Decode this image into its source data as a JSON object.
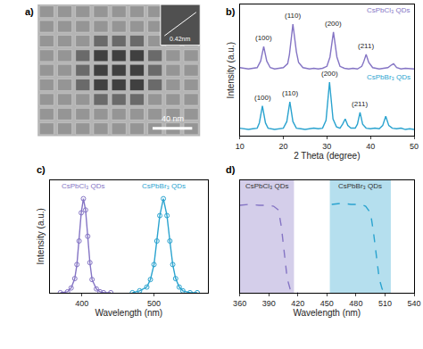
{
  "chart_data": [
    {
      "panel": "a)",
      "type": "image",
      "scale_bar": "40 nm",
      "inset_label": "0.42nm"
    },
    {
      "panel": "b)",
      "type": "line",
      "x_label": "2 Theta (degree)",
      "y_label": "Intensity (a.u.)",
      "xlim": [
        10,
        50
      ],
      "xticks": [
        10,
        20,
        30,
        40,
        50
      ],
      "ylim": [
        0,
        100
      ],
      "tick_labels": "x",
      "series": [
        {
          "name": "CsPbCl₃ QDs",
          "color": "#8474c4",
          "x": [
            10,
            11,
            12,
            13,
            14,
            14.8,
            15.5,
            16.2,
            17,
            18,
            19,
            20,
            21,
            21.4,
            22.2,
            23,
            23.5,
            24.5,
            26,
            27,
            28,
            29,
            30,
            30.7,
            31.5,
            32.3,
            33,
            34,
            35,
            36,
            37,
            38,
            38.4,
            39,
            39.6,
            40.5,
            42,
            43,
            44,
            44.8,
            45.3,
            46,
            47,
            48,
            49,
            50
          ],
          "values": [
            52,
            51.5,
            51,
            51.5,
            52,
            57,
            68,
            57,
            52,
            51,
            51.5,
            52,
            55,
            62,
            85,
            64,
            56,
            52,
            51,
            51.5,
            51,
            51.5,
            53,
            60,
            79,
            60,
            53,
            51.5,
            51,
            51.5,
            51,
            53,
            56,
            62,
            56,
            52,
            51,
            51.5,
            52,
            54,
            55,
            52,
            51,
            51.5,
            51,
            51
          ],
          "annotations": [
            {
              "text": "(100)",
              "x": 15.5,
              "y": 70
            },
            {
              "text": "(110)",
              "x": 22.2,
              "y": 87
            },
            {
              "text": "(200)",
              "x": 31.5,
              "y": 81
            },
            {
              "text": "(211)",
              "x": 39,
              "y": 64
            }
          ]
        },
        {
          "name": "CsPbBr₃ QDs",
          "color": "#2aa3cf",
          "x": [
            10,
            11,
            12,
            13,
            14,
            14.5,
            15.2,
            15.9,
            16.5,
            18,
            19,
            20,
            20.8,
            21.5,
            22.2,
            23,
            24,
            25,
            26,
            27,
            28,
            29,
            29.8,
            30.6,
            31.4,
            32.2,
            33,
            33.6,
            34.2,
            34.8,
            35.5,
            36.5,
            37,
            37.6,
            38.2,
            39,
            40,
            41,
            42,
            42.8,
            43.5,
            44.2,
            45,
            46,
            47,
            48,
            49,
            50
          ],
          "values": [
            6,
            5.5,
            5,
            5.5,
            6,
            10,
            23,
            10,
            6,
            5,
            5.5,
            6,
            11,
            26,
            11,
            6,
            5.5,
            5,
            5.5,
            6,
            5.5,
            6,
            12,
            41,
            13,
            7,
            6,
            9,
            13,
            8,
            6,
            6,
            9,
            18,
            9,
            6,
            5.5,
            6,
            5.5,
            8,
            15,
            8,
            6,
            5.5,
            6,
            5,
            5.5,
            5
          ],
          "annotations": [
            {
              "text": "(100)",
              "x": 15.2,
              "y": 25
            },
            {
              "text": "(110)",
              "x": 21.5,
              "y": 28
            },
            {
              "text": "(200)",
              "x": 30.6,
              "y": 43
            },
            {
              "text": "(211)",
              "x": 37.6,
              "y": 20
            }
          ]
        }
      ]
    },
    {
      "panel": "c)",
      "type": "line",
      "x_label": "Wavelength (nm)",
      "y_label": "Intensity (a.u.)",
      "xlim": [
        355,
        575
      ],
      "xticks": [
        400,
        500
      ],
      "ylim": [
        0,
        120
      ],
      "tick_labels": "x",
      "marker": "circle-open",
      "series": [
        {
          "name": "CsPbCl₃ QDs",
          "color": "#8474c4",
          "x": [
            370,
            380,
            385,
            390,
            393,
            396,
            399,
            402,
            405,
            408,
            411,
            414,
            420,
            425,
            430,
            440
          ],
          "values": [
            0,
            1,
            5,
            15,
            30,
            55,
            85,
            100,
            88,
            60,
            32,
            14,
            4,
            1,
            0,
            0
          ]
        },
        {
          "name": "CsPbBr₃ QDs",
          "color": "#2aa3cf",
          "x": [
            470,
            480,
            490,
            495,
            500,
            504,
            508,
            513,
            518,
            522,
            526,
            530,
            535,
            540,
            550,
            560
          ],
          "values": [
            0,
            2,
            6,
            14,
            30,
            55,
            82,
            100,
            82,
            55,
            30,
            15,
            6,
            2,
            0,
            0
          ]
        }
      ]
    },
    {
      "panel": "d)",
      "type": "line",
      "x_label": "Wavelength (nm)",
      "xlim": [
        360,
        540
      ],
      "xticks": [
        360,
        390,
        420,
        450,
        480,
        510,
        540
      ],
      "ylim": [
        0,
        120
      ],
      "tick_labels": "x",
      "line_style": "dash",
      "series": [
        {
          "name": "CsPbCl₃ QDs",
          "color": "#8474c4",
          "band": [
            360,
            416
          ],
          "x": [
            360,
            370,
            380,
            390,
            395,
            400,
            403,
            406,
            409,
            412,
            415,
            420
          ],
          "values": [
            93,
            94,
            93,
            93,
            92,
            88,
            70,
            40,
            15,
            4,
            1,
            0
          ]
        },
        {
          "name": "CsPbBr₃ QDs",
          "color": "#2aa3cf",
          "band": [
            453,
            516
          ],
          "x": [
            455,
            465,
            475,
            485,
            490,
            495,
            498,
            501,
            504,
            507,
            510,
            515
          ],
          "values": [
            94,
            95,
            94,
            94,
            92,
            85,
            65,
            40,
            15,
            4,
            1,
            0
          ]
        }
      ]
    }
  ]
}
